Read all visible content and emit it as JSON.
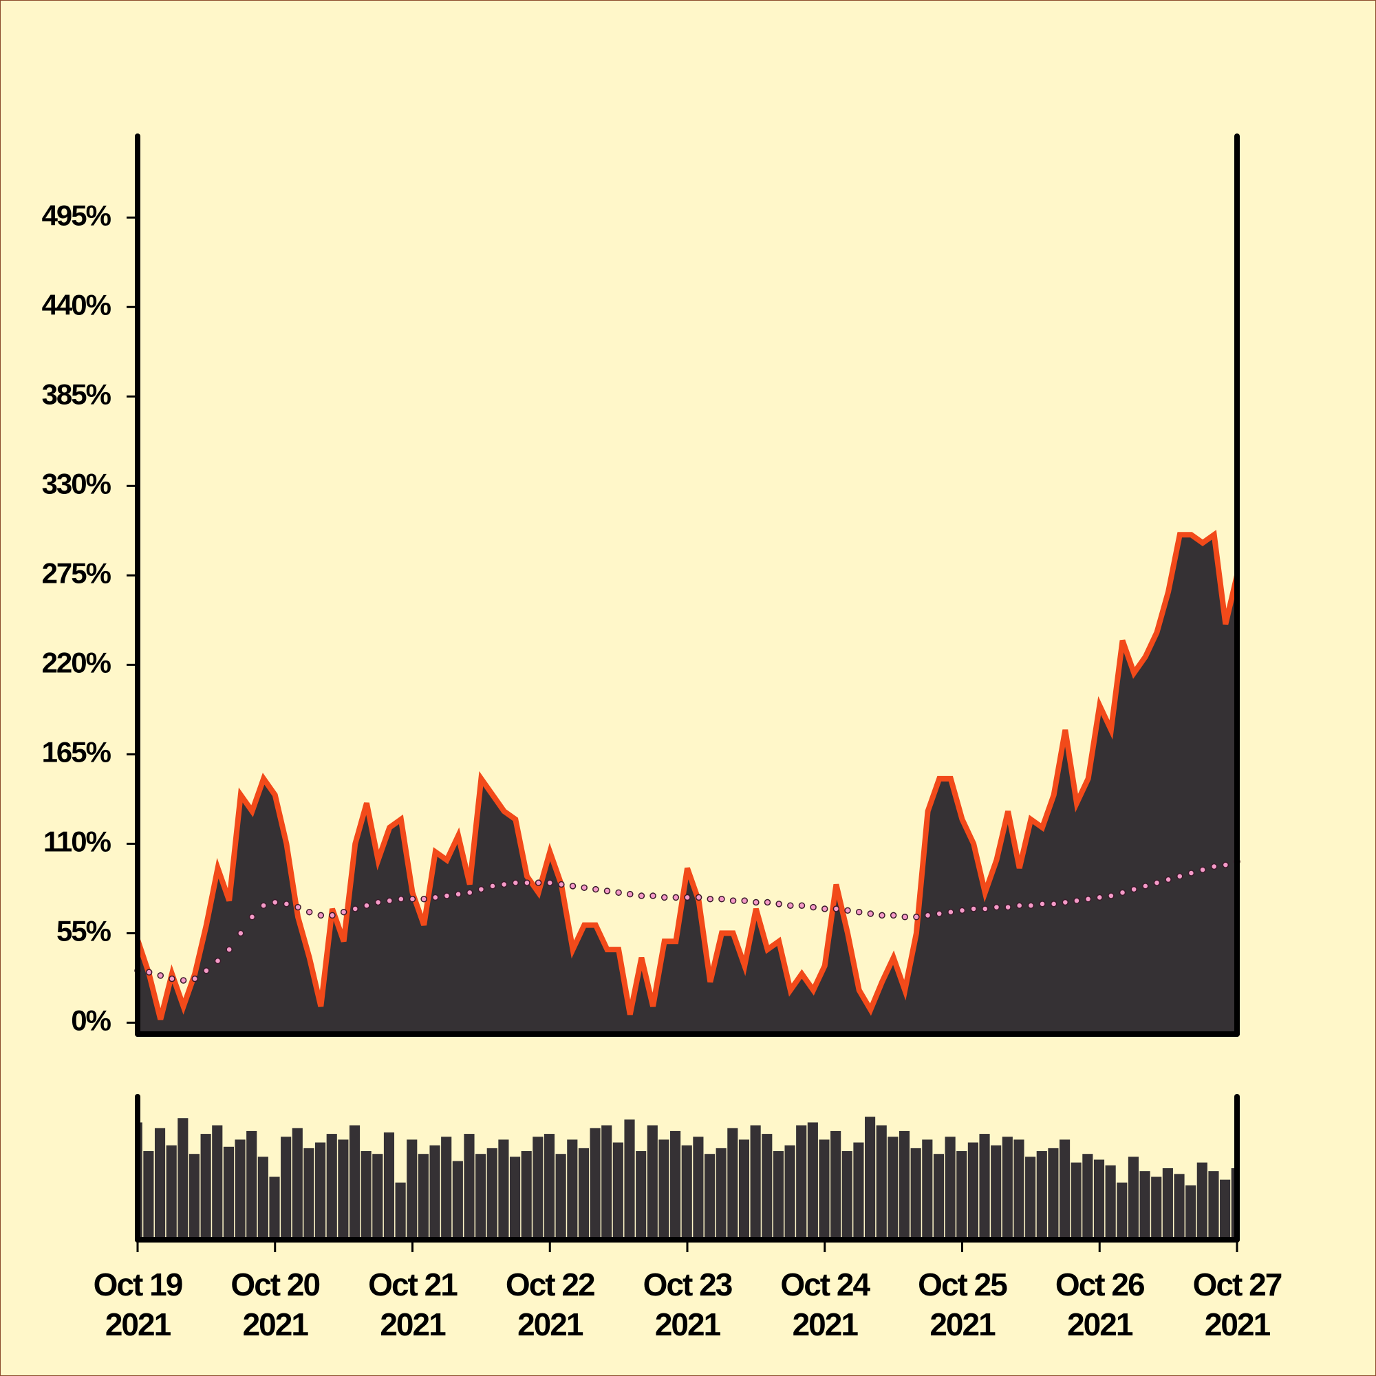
{
  "chart_data": {
    "type": "area",
    "categories": [
      "Oct 19\n2021",
      null,
      null,
      null,
      null,
      null,
      null,
      null,
      null,
      null,
      null,
      null,
      "Oct 20\n2021",
      null,
      null,
      null,
      null,
      null,
      null,
      null,
      null,
      null,
      null,
      null,
      "Oct 21\n2021",
      null,
      null,
      null,
      null,
      null,
      null,
      null,
      null,
      null,
      null,
      null,
      "Oct 22\n2021",
      null,
      null,
      null,
      null,
      null,
      null,
      null,
      null,
      null,
      null,
      null,
      "Oct 23\n2021",
      null,
      null,
      null,
      null,
      null,
      null,
      null,
      null,
      null,
      null,
      null,
      "Oct 24\n2021",
      null,
      null,
      null,
      null,
      null,
      null,
      null,
      null,
      null,
      null,
      null,
      "Oct 25\n2021",
      null,
      null,
      null,
      null,
      null,
      null,
      null,
      null,
      null,
      null,
      null,
      "Oct 26\n2021",
      null,
      null,
      null,
      null,
      null,
      null,
      null,
      null,
      null,
      null,
      null,
      "Oct 27\n2021"
    ],
    "series": [
      {
        "color": "#f24a1a",
        "fill": "#353134",
        "values": [
          51,
          30,
          2,
          30,
          10,
          30,
          60,
          95,
          75,
          140,
          130,
          150,
          140,
          110,
          65,
          40,
          10,
          70,
          50,
          110,
          135,
          100,
          120,
          125,
          80,
          60,
          105,
          100,
          115,
          85,
          150,
          140,
          130,
          125,
          90,
          80,
          105,
          85,
          45,
          60,
          60,
          45,
          45,
          5,
          40,
          10,
          50,
          50,
          95,
          75,
          25,
          55,
          55,
          35,
          70,
          45,
          50,
          20,
          30,
          20,
          35,
          85,
          55,
          20,
          8,
          25,
          40,
          20,
          55,
          130,
          150,
          150,
          125,
          110,
          80,
          100,
          130,
          95,
          125,
          120,
          140,
          180,
          135,
          150,
          195,
          180,
          235,
          215,
          225,
          240,
          265,
          300,
          300,
          295,
          300,
          245,
          275
        ]
      },
      {
        "color": "#f59ac8",
        "values": [
          32,
          31,
          29,
          27,
          26,
          27,
          32,
          38,
          45,
          55,
          65,
          72,
          74,
          73,
          71,
          68,
          66,
          66,
          68,
          70,
          72,
          74,
          75,
          76,
          76,
          76,
          77,
          78,
          79,
          80,
          82,
          84,
          85,
          86,
          86,
          86,
          86,
          85,
          84,
          83,
          82,
          81,
          80,
          79,
          78,
          78,
          77,
          77,
          77,
          77,
          76,
          76,
          75,
          75,
          74,
          74,
          73,
          72,
          72,
          71,
          70,
          70,
          69,
          68,
          67,
          66,
          66,
          65,
          65,
          66,
          67,
          68,
          69,
          70,
          70,
          71,
          71,
          72,
          72,
          73,
          73,
          74,
          75,
          76,
          77,
          78,
          80,
          82,
          84,
          86,
          88,
          90,
          92,
          94,
          96,
          97,
          99
        ]
      }
    ],
    "volume": {
      "color": "#353134",
      "ylim": [
        0,
        100
      ],
      "values": [
        82,
        62,
        78,
        66,
        85,
        60,
        74,
        80,
        65,
        70,
        76,
        58,
        44,
        72,
        78,
        64,
        68,
        74,
        70,
        80,
        62,
        60,
        75,
        40,
        70,
        60,
        66,
        72,
        55,
        74,
        60,
        64,
        70,
        58,
        62,
        72,
        74,
        60,
        70,
        64,
        78,
        80,
        68,
        84,
        62,
        80,
        70,
        76,
        66,
        72,
        60,
        64,
        78,
        70,
        80,
        74,
        62,
        66,
        80,
        82,
        70,
        76,
        62,
        68,
        86,
        80,
        72,
        76,
        64,
        70,
        60,
        72,
        62,
        68,
        74,
        66,
        72,
        70,
        58,
        62,
        64,
        70,
        54,
        60,
        56,
        52,
        40,
        58,
        48,
        44,
        50,
        46,
        38,
        54,
        48,
        42,
        50
      ]
    },
    "ylim": [
      -7,
      545
    ],
    "yticks": [
      {
        "value": 0,
        "label": "0%"
      },
      {
        "value": 55,
        "label": "55%"
      },
      {
        "value": 110,
        "label": "110%"
      },
      {
        "value": 165,
        "label": "165%"
      },
      {
        "value": 220,
        "label": "220%"
      },
      {
        "value": 275,
        "label": "275%"
      },
      {
        "value": 330,
        "label": "330%"
      },
      {
        "value": 385,
        "label": "385%"
      },
      {
        "value": 440,
        "label": "440%"
      },
      {
        "value": 495,
        "label": "495%"
      }
    ]
  }
}
